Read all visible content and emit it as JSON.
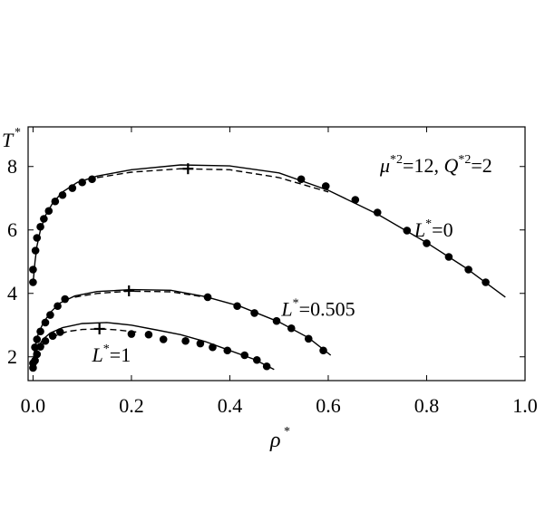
{
  "chart_data": {
    "type": "line",
    "title": "",
    "xlabel": "ρ",
    "xlabel_sup": "*",
    "ylabel": "T",
    "ylabel_sup": "*",
    "xlim": [
      -0.01,
      1.0
    ],
    "ylim": [
      1.25,
      9.25
    ],
    "x_ticks": [
      0.0,
      0.2,
      0.4,
      0.6,
      0.8,
      1.0
    ],
    "x_tick_labels": [
      "0.0",
      "0.2",
      "0.4",
      "0.6",
      "0.8",
      "1.0"
    ],
    "y_ticks": [
      2,
      4,
      6,
      8
    ],
    "y_tick_labels": [
      "2",
      "4",
      "6",
      "8"
    ],
    "grid": false,
    "legend": "none",
    "annotation": {
      "mu_base": "μ",
      "mu_sup": "*2",
      "mu_value": "=12, ",
      "q_base": "Q",
      "q_sup": "*2",
      "q_value": "=2"
    },
    "series": [
      {
        "label_base": "L",
        "label_sup": "*",
        "label_value": "=0",
        "label_anchor": [
          0.775,
          5.8
        ],
        "critical_point": [
          0.315,
          7.93
        ],
        "solid": [
          [
            0.0,
            4.3
          ],
          [
            0.004,
            5.0
          ],
          [
            0.008,
            5.5
          ],
          [
            0.015,
            6.0
          ],
          [
            0.025,
            6.45
          ],
          [
            0.04,
            6.85
          ],
          [
            0.06,
            7.2
          ],
          [
            0.09,
            7.5
          ],
          [
            0.13,
            7.7
          ],
          [
            0.2,
            7.9
          ],
          [
            0.3,
            8.05
          ],
          [
            0.4,
            8.02
          ],
          [
            0.5,
            7.8
          ],
          [
            0.6,
            7.25
          ],
          [
            0.7,
            6.5
          ],
          [
            0.8,
            5.6
          ],
          [
            0.88,
            4.8
          ],
          [
            0.96,
            3.88
          ]
        ],
        "dashed": [
          [
            0.13,
            7.65
          ],
          [
            0.2,
            7.82
          ],
          [
            0.3,
            7.93
          ],
          [
            0.4,
            7.9
          ],
          [
            0.5,
            7.65
          ],
          [
            0.6,
            7.2
          ]
        ],
        "points": [
          [
            0.0,
            4.35
          ],
          [
            0.0,
            4.75
          ],
          [
            0.005,
            5.35
          ],
          [
            0.008,
            5.75
          ],
          [
            0.015,
            6.1
          ],
          [
            0.022,
            6.35
          ],
          [
            0.032,
            6.6
          ],
          [
            0.045,
            6.9
          ],
          [
            0.06,
            7.1
          ],
          [
            0.08,
            7.32
          ],
          [
            0.1,
            7.5
          ],
          [
            0.12,
            7.6
          ],
          [
            0.545,
            7.6
          ],
          [
            0.595,
            7.38
          ],
          [
            0.655,
            6.95
          ],
          [
            0.7,
            6.55
          ],
          [
            0.76,
            5.98
          ],
          [
            0.8,
            5.58
          ],
          [
            0.845,
            5.15
          ],
          [
            0.885,
            4.75
          ],
          [
            0.92,
            4.35
          ]
        ]
      },
      {
        "label_base": "L",
        "label_sup": "*",
        "label_value": "=0.505",
        "label_anchor": [
          0.505,
          3.3
        ],
        "critical_point": [
          0.195,
          4.08
        ],
        "solid": [
          [
            0.0,
            1.85
          ],
          [
            0.004,
            2.3
          ],
          [
            0.01,
            2.7
          ],
          [
            0.02,
            3.05
          ],
          [
            0.035,
            3.4
          ],
          [
            0.055,
            3.7
          ],
          [
            0.085,
            3.92
          ],
          [
            0.13,
            4.06
          ],
          [
            0.2,
            4.12
          ],
          [
            0.28,
            4.1
          ],
          [
            0.35,
            3.9
          ],
          [
            0.42,
            3.6
          ],
          [
            0.5,
            3.1
          ],
          [
            0.56,
            2.6
          ],
          [
            0.605,
            2.05
          ]
        ],
        "dashed": [
          [
            0.085,
            3.88
          ],
          [
            0.13,
            4.0
          ],
          [
            0.195,
            4.07
          ],
          [
            0.28,
            4.05
          ],
          [
            0.35,
            3.88
          ]
        ],
        "points": [
          [
            0.0,
            1.8
          ],
          [
            0.004,
            2.3
          ],
          [
            0.008,
            2.55
          ],
          [
            0.015,
            2.8
          ],
          [
            0.025,
            3.08
          ],
          [
            0.035,
            3.32
          ],
          [
            0.05,
            3.6
          ],
          [
            0.065,
            3.82
          ],
          [
            0.355,
            3.88
          ],
          [
            0.415,
            3.6
          ],
          [
            0.45,
            3.38
          ],
          [
            0.495,
            3.13
          ],
          [
            0.525,
            2.9
          ],
          [
            0.56,
            2.57
          ],
          [
            0.59,
            2.2
          ]
        ]
      },
      {
        "label_base": "L",
        "label_sup": "*",
        "label_value": "=1",
        "label_anchor": [
          0.12,
          1.85
        ],
        "critical_point": [
          0.135,
          2.88
        ],
        "solid": [
          [
            0.0,
            1.72
          ],
          [
            0.004,
            2.0
          ],
          [
            0.01,
            2.3
          ],
          [
            0.02,
            2.55
          ],
          [
            0.035,
            2.75
          ],
          [
            0.06,
            2.92
          ],
          [
            0.1,
            3.05
          ],
          [
            0.15,
            3.08
          ],
          [
            0.2,
            3.0
          ],
          [
            0.25,
            2.85
          ],
          [
            0.3,
            2.7
          ],
          [
            0.35,
            2.48
          ],
          [
            0.4,
            2.2
          ],
          [
            0.45,
            1.92
          ],
          [
            0.49,
            1.6
          ]
        ],
        "dashed": [
          [
            0.02,
            2.45
          ],
          [
            0.04,
            2.63
          ],
          [
            0.07,
            2.8
          ],
          [
            0.1,
            2.86
          ],
          [
            0.135,
            2.88
          ],
          [
            0.17,
            2.85
          ],
          [
            0.21,
            2.78
          ]
        ],
        "points": [
          [
            0.0,
            1.65
          ],
          [
            0.004,
            1.88
          ],
          [
            0.008,
            2.08
          ],
          [
            0.015,
            2.32
          ],
          [
            0.025,
            2.5
          ],
          [
            0.04,
            2.66
          ],
          [
            0.055,
            2.78
          ],
          [
            0.2,
            2.72
          ],
          [
            0.235,
            2.7
          ],
          [
            0.265,
            2.55
          ],
          [
            0.31,
            2.5
          ],
          [
            0.34,
            2.42
          ],
          [
            0.365,
            2.3
          ],
          [
            0.395,
            2.2
          ],
          [
            0.43,
            2.05
          ],
          [
            0.455,
            1.9
          ],
          [
            0.475,
            1.7
          ]
        ]
      }
    ]
  }
}
